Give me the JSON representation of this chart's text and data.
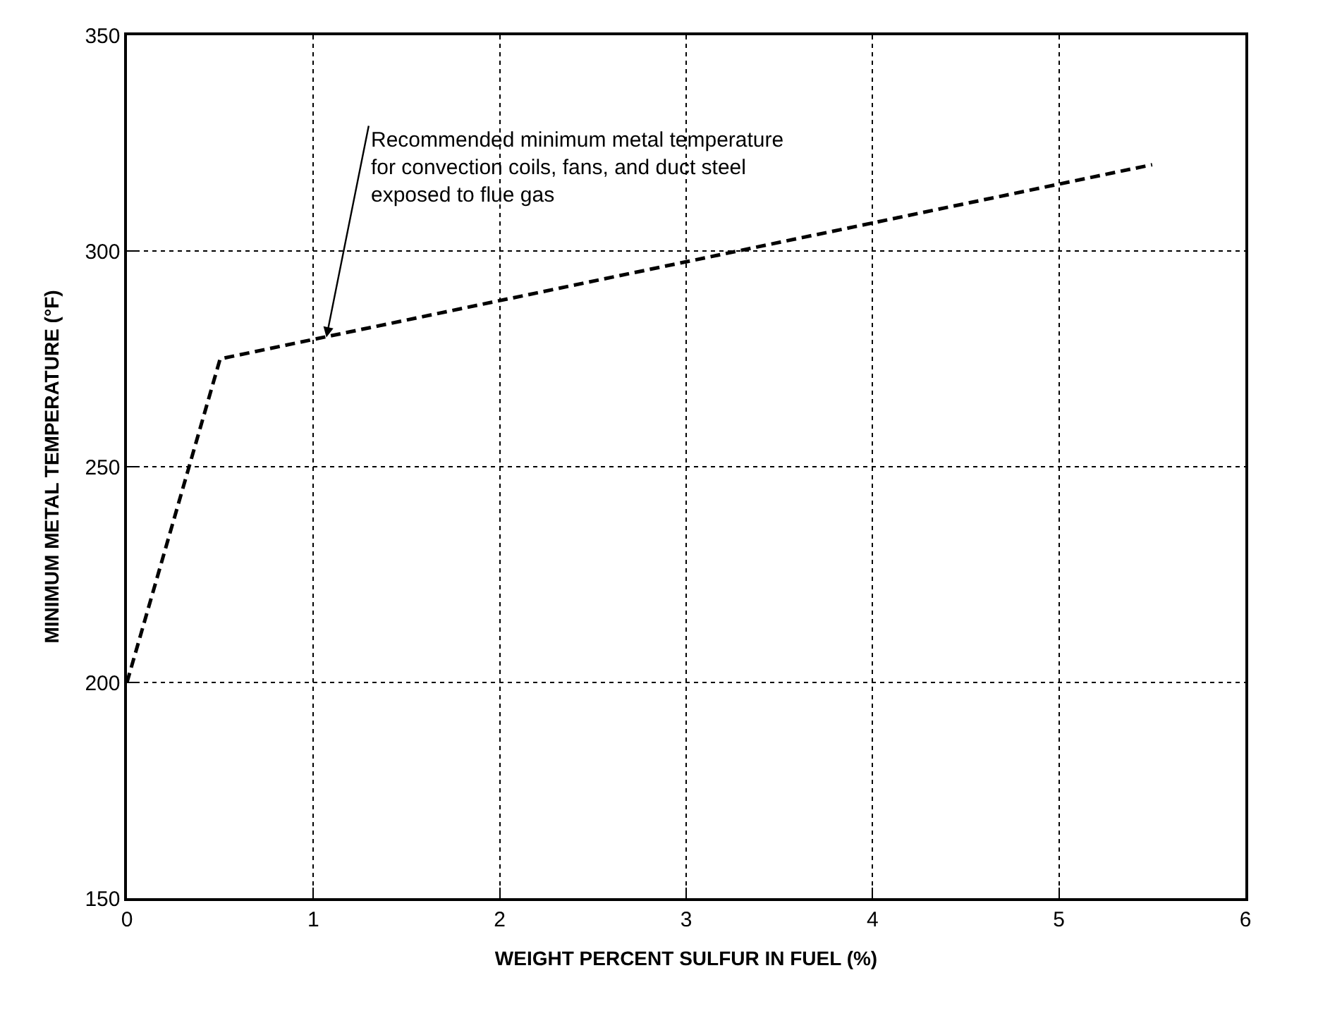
{
  "chart_data": {
    "type": "line",
    "xlabel": "WEIGHT PERCENT SULFUR IN FUEL (%)",
    "ylabel": "MINIMUM METAL TEMPERATURE (°F)",
    "x": [
      0,
      0.5,
      5.5
    ],
    "series": [
      {
        "color": "#000000",
        "values": [
          200,
          275,
          320
        ]
      }
    ],
    "line_style": "dashed",
    "marker": "none",
    "xlim": [
      0,
      6
    ],
    "xticks": [
      0,
      1,
      2,
      3,
      4,
      5,
      6
    ],
    "ylim": [
      150,
      350
    ],
    "yticks": [
      150,
      200,
      250,
      300,
      350
    ],
    "grid": true,
    "annotations": [
      {
        "text": "Recommended minimum metal temperature\nfor convection coils, fans, and duct steel\nexposed to flue gas",
        "x": 1.07,
        "y": 280
      }
    ]
  }
}
